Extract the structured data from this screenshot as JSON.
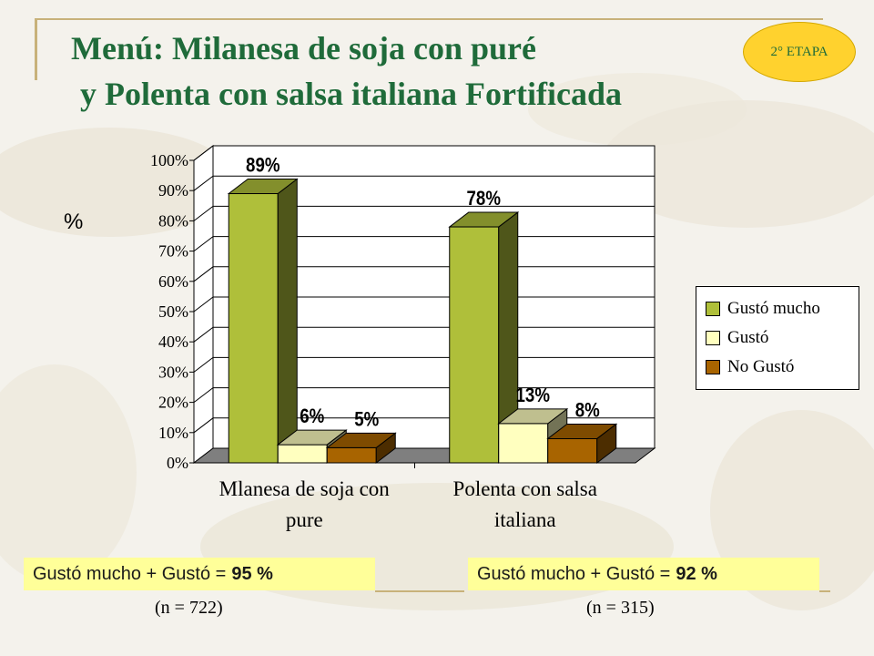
{
  "slide": {
    "title_line1": "Menú: Milanesa de soja con puré",
    "title_line2": "y Polenta con salsa italiana Fortificada",
    "stage_badge": "2° ETAPA",
    "y_unit": "%"
  },
  "chart_data": {
    "type": "bar",
    "style": "3d-clustered",
    "categories": [
      "Mlanesa de soja con pure",
      "Polenta con salsa italiana"
    ],
    "category_lines": [
      [
        "Mlanesa de soja con",
        "pure"
      ],
      [
        "Polenta con salsa",
        "italiana"
      ]
    ],
    "series": [
      {
        "name": "Gustó mucho",
        "values": [
          89,
          78
        ],
        "color": "#afbf3a"
      },
      {
        "name": "Gustó",
        "values": [
          6,
          13
        ],
        "color": "#ffffbf"
      },
      {
        "name": "No Gustó",
        "values": [
          5,
          8
        ],
        "color": "#a86400"
      }
    ],
    "data_labels": [
      [
        "89%",
        "6%",
        "5%"
      ],
      [
        "78%",
        "13%",
        "8%"
      ]
    ],
    "ylim": [
      0,
      100
    ],
    "yticks": [
      "0%",
      "10%",
      "20%",
      "30%",
      "40%",
      "50%",
      "60%",
      "70%",
      "80%",
      "90%",
      "100%"
    ],
    "ylabel": "%",
    "grid": true,
    "legend_position": "right"
  },
  "summary": [
    {
      "text": "Gustó mucho + Gustó =",
      "value": "95 %",
      "n": "(n = 722)"
    },
    {
      "text": "Gustó mucho + Gustó =",
      "value": "92 %",
      "n": "(n = 315)"
    }
  ]
}
